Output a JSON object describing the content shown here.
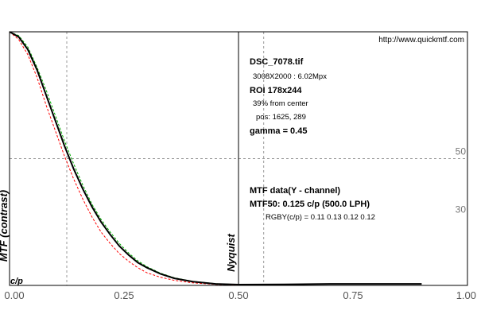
{
  "chart_data": {
    "type": "line",
    "ylabel": "MTF (contrast)",
    "xlim": [
      0,
      1
    ],
    "ylim": [
      0,
      1
    ],
    "x_ticks": [
      "0.00",
      "0.25",
      "0.50",
      "0.75",
      "1.00"
    ],
    "c_per_p_label": "c/p",
    "nyquist": {
      "label": "Nyquist",
      "x": 0.5
    },
    "reference_lines": [
      {
        "label": "50",
        "y": 0.5
      },
      {
        "label": "30",
        "y": 0.3
      }
    ],
    "mtf50_marker_x": 0.125,
    "lpph_marker_x": 0.555,
    "series": [
      {
        "color": "#000000",
        "x": [
          0,
          0.02,
          0.04,
          0.06,
          0.08,
          0.1,
          0.12,
          0.14,
          0.16,
          0.18,
          0.2,
          0.22,
          0.24,
          0.26,
          0.28,
          0.3,
          0.33,
          0.36,
          0.4,
          0.45,
          0.5,
          0.6,
          0.7,
          0.8,
          0.9
        ],
        "values": [
          1.0,
          0.98,
          0.93,
          0.85,
          0.75,
          0.65,
          0.55,
          0.46,
          0.38,
          0.31,
          0.25,
          0.2,
          0.155,
          0.12,
          0.09,
          0.07,
          0.045,
          0.028,
          0.015,
          0.006,
          0.003,
          0.004,
          0.006,
          0.006,
          0.006
        ]
      },
      {
        "color": "#ff0000",
        "x": [
          0,
          0.02,
          0.04,
          0.06,
          0.08,
          0.1,
          0.12,
          0.14,
          0.16,
          0.18,
          0.2,
          0.22,
          0.24,
          0.26,
          0.28,
          0.3,
          0.33,
          0.36,
          0.4,
          0.45,
          0.5
        ],
        "values": [
          1.0,
          0.97,
          0.91,
          0.82,
          0.71,
          0.61,
          0.51,
          0.42,
          0.34,
          0.27,
          0.21,
          0.165,
          0.125,
          0.095,
          0.07,
          0.05,
          0.032,
          0.02,
          0.01,
          0.004,
          0.002
        ]
      },
      {
        "color": "#00aa00",
        "x": [
          0,
          0.02,
          0.04,
          0.06,
          0.08,
          0.1,
          0.12,
          0.14,
          0.16,
          0.18,
          0.2,
          0.22,
          0.24,
          0.26,
          0.28,
          0.3,
          0.33,
          0.36,
          0.4,
          0.45,
          0.5
        ],
        "values": [
          1.0,
          0.985,
          0.94,
          0.86,
          0.77,
          0.67,
          0.57,
          0.48,
          0.395,
          0.32,
          0.26,
          0.21,
          0.165,
          0.128,
          0.097,
          0.074,
          0.048,
          0.03,
          0.016,
          0.007,
          0.003
        ]
      }
    ]
  },
  "info": {
    "url": "http://www.quickmtf.com",
    "filename": "DSC_7078.tif",
    "dimensions": "3008X2000 : 6.02Mpx",
    "roi": "ROI 178x244",
    "roi_pct": "39% from center",
    "roi_pos": "pos: 1625, 289",
    "gamma": "gamma = 0.45",
    "mtf_title": "MTF data(Y - channel)",
    "mtf50": "MTF50: 0.125 c/p (500.0 LPH)",
    "rgby": "RGBY(c/p) = 0.11 0.13 0.12 0.12"
  },
  "colors": {
    "frame": "#000000",
    "grid": "#999999"
  }
}
